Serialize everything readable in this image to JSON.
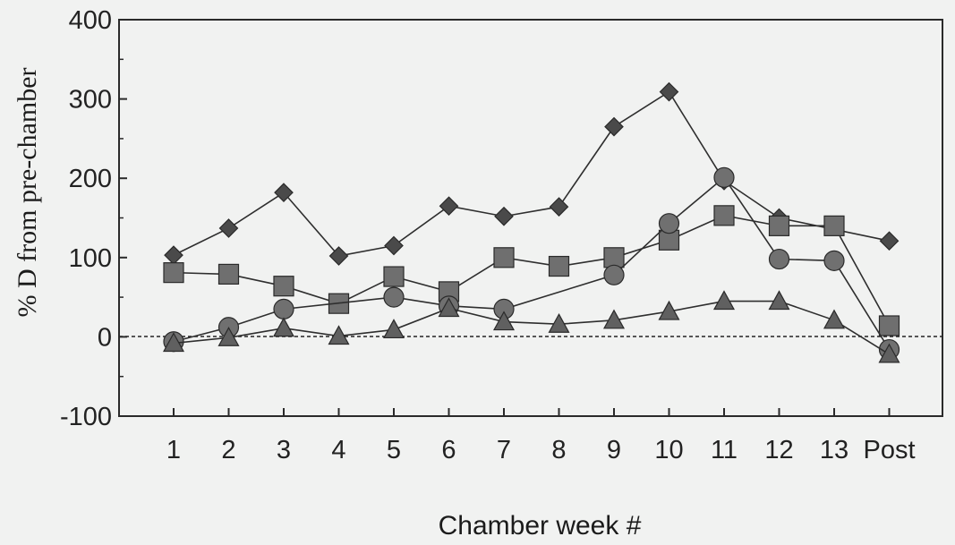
{
  "chart_data": {
    "type": "line",
    "title": "",
    "xlabel": "Chamber week #",
    "ylabel": "% D  from pre-chamber",
    "categories": [
      "1",
      "2",
      "3",
      "4",
      "5",
      "6",
      "7",
      "8",
      "9",
      "10",
      "11",
      "12",
      "13",
      "Post"
    ],
    "ylim": [
      -100,
      400
    ],
    "yticks": [
      -100,
      0,
      100,
      200,
      300,
      400
    ],
    "zero_line": "dashed",
    "grid": false,
    "legend": "none",
    "series": [
      {
        "marker": "diamond",
        "color": "#4a4a4a",
        "values": [
          103,
          137,
          182,
          102,
          115,
          165,
          152,
          164,
          265,
          309,
          197,
          150,
          null,
          121
        ]
      },
      {
        "marker": "square",
        "color": "#6f6f6f",
        "values": [
          81,
          79,
          64,
          42,
          76,
          57,
          100,
          89,
          100,
          122,
          153,
          140,
          140,
          14
        ]
      },
      {
        "marker": "circle",
        "color": "#707070",
        "values": [
          -6,
          12,
          35,
          null,
          50,
          39,
          35,
          null,
          78,
          143,
          201,
          98,
          96,
          -16
        ]
      },
      {
        "marker": "triangle",
        "color": "#606060",
        "values": [
          -8,
          -1,
          11,
          1,
          9,
          36,
          19,
          16,
          21,
          32,
          45,
          45,
          21,
          -22
        ]
      }
    ]
  }
}
